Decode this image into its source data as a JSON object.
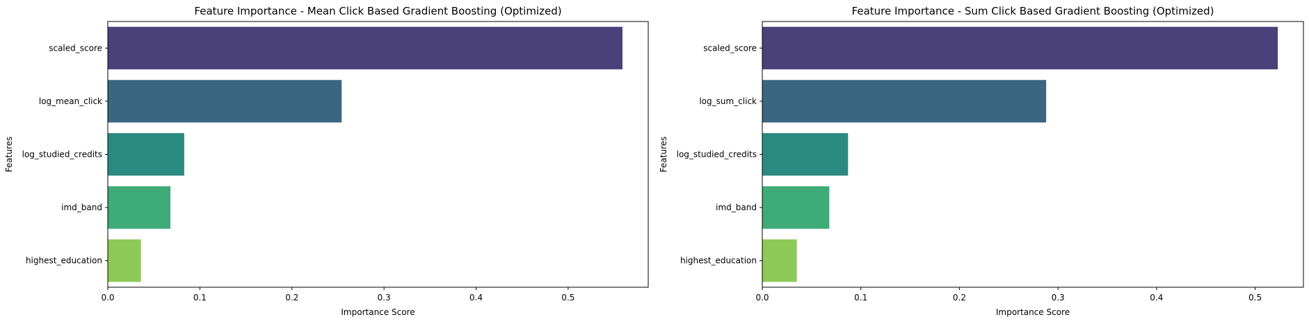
{
  "chart_data": [
    {
      "type": "bar",
      "orientation": "horizontal",
      "title": "Feature Importance - Mean Click Based Gradient Boosting (Optimized)",
      "xlabel": "Importance Score",
      "ylabel": "Features",
      "categories": [
        "scaled_score",
        "log_mean_click",
        "log_studied_credits",
        "imd_band",
        "highest_education"
      ],
      "values": [
        0.559,
        0.254,
        0.083,
        0.068,
        0.036
      ],
      "colors": [
        "#4a417a",
        "#3b6682",
        "#2a8a80",
        "#3fab78",
        "#8dc958"
      ],
      "xticks": [
        "0.0",
        "0.1",
        "0.2",
        "0.3",
        "0.4",
        "0.5"
      ],
      "xlim": [
        0,
        0.587
      ],
      "grid": false
    },
    {
      "type": "bar",
      "orientation": "horizontal",
      "title": "Feature Importance - Sum Click Based Gradient Boosting (Optimized)",
      "xlabel": "Importance Score",
      "ylabel": "Features",
      "categories": [
        "scaled_score",
        "log_sum_click",
        "log_studied_credits",
        "imd_band",
        "highest_education"
      ],
      "values": [
        0.523,
        0.288,
        0.087,
        0.068,
        0.035
      ],
      "colors": [
        "#4a417a",
        "#3b6682",
        "#2a8a80",
        "#3fab78",
        "#8dc958"
      ],
      "xticks": [
        "0.0",
        "0.1",
        "0.2",
        "0.3",
        "0.4",
        "0.5"
      ],
      "xlim": [
        0,
        0.549
      ],
      "grid": false
    }
  ]
}
